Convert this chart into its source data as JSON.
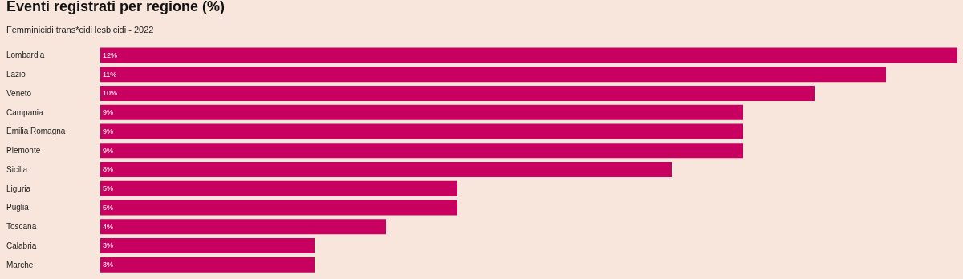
{
  "chart_data": {
    "type": "bar",
    "orientation": "horizontal",
    "title": "Eventi registrati per regione (%)",
    "subtitle": "Femminicidi trans*cidi lesbicidi - 2022",
    "categories": [
      "Lombardia",
      "Lazio",
      "Veneto",
      "Campania",
      "Emilia Romagna",
      "Piemonte",
      "Sicilia",
      "Liguria",
      "Puglia",
      "Toscana",
      "Calabria",
      "Marche"
    ],
    "values": [
      12,
      11,
      10,
      9,
      9,
      9,
      8,
      5,
      5,
      4,
      3,
      3
    ],
    "value_labels": [
      "12%",
      "11%",
      "10%",
      "9%",
      "9%",
      "9%",
      "8%",
      "5%",
      "5%",
      "4%",
      "3%",
      "3%"
    ],
    "color": "#c8005f"
  }
}
